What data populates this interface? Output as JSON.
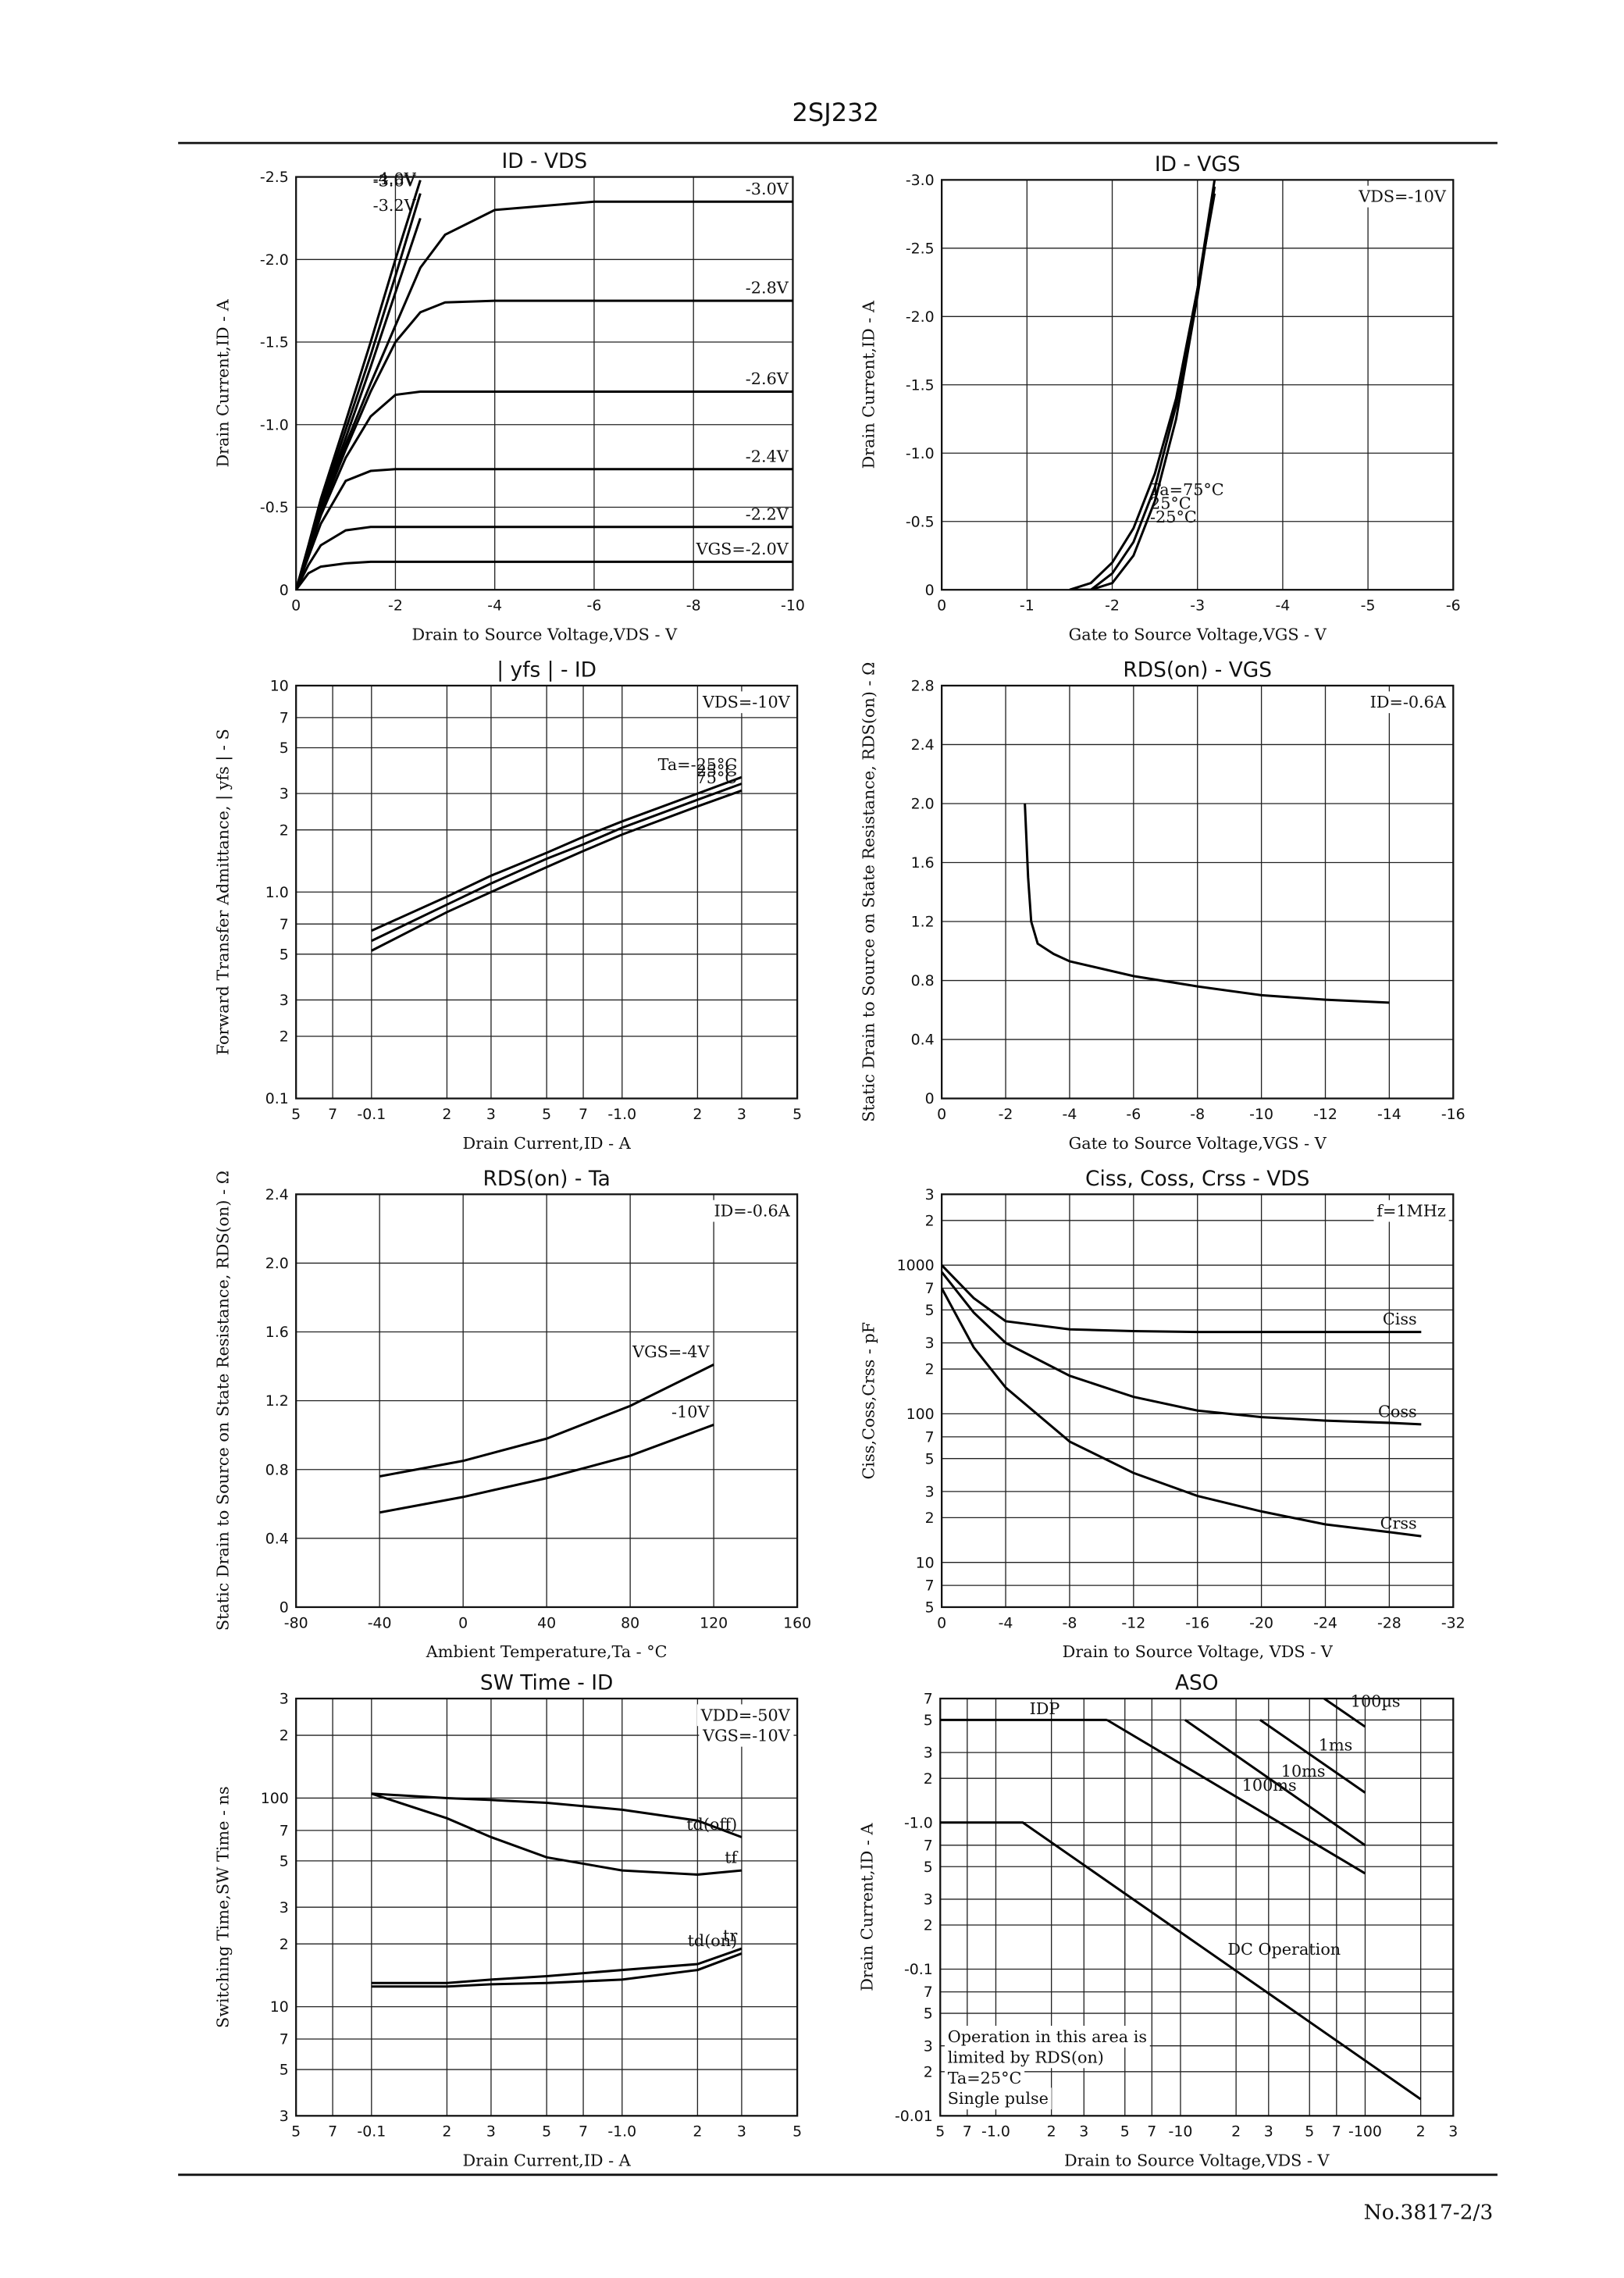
{
  "header": "2SJ232",
  "footer": "No.3817-2/3",
  "chart_data": [
    {
      "type": "line",
      "title": "ID - VDS",
      "xlabel": "Drain to Source Voltage,VDS - V",
      "ylabel": "Drain Current,ID - A",
      "color": "#000",
      "grid": true,
      "xlim": [
        0,
        -10
      ],
      "ylim": [
        0,
        -2.5
      ],
      "xticks": [
        0,
        -2,
        -4,
        -6,
        -8,
        -10
      ],
      "yticks": [
        0,
        -0.5,
        {
          "value": -1,
          "label": "-1.0"
        },
        -1.5,
        {
          "value": -2,
          "label": "-2.0"
        },
        -2.5
      ],
      "x": [
        0,
        -0.25,
        -0.5,
        -1,
        -1.5,
        -2,
        -2.5,
        -3,
        -4,
        -6,
        -8,
        -10
      ],
      "series": [
        {
          "name": "VGS=-2.0V",
          "values": [
            0,
            -0.1,
            -0.14,
            -0.16,
            -0.17,
            -0.17,
            -0.17,
            -0.17,
            -0.17,
            -0.17,
            -0.17,
            -0.17
          ]
        },
        {
          "name": "-2.2V",
          "values": [
            0,
            -0.15,
            -0.27,
            -0.36,
            -0.38,
            -0.38,
            -0.38,
            -0.38,
            -0.38,
            -0.38,
            -0.38,
            -0.38
          ]
        },
        {
          "name": "-2.4V",
          "values": [
            0,
            -0.2,
            -0.4,
            -0.66,
            -0.72,
            -0.73,
            -0.73,
            -0.73,
            -0.73,
            -0.73,
            -0.73,
            -0.73
          ]
        },
        {
          "name": "-2.6V",
          "values": [
            0,
            -0.22,
            -0.45,
            -0.8,
            -1.05,
            -1.18,
            -1.2,
            -1.2,
            -1.2,
            -1.2,
            -1.2,
            -1.2
          ]
        },
        {
          "name": "-2.8V",
          "values": [
            0,
            -0.23,
            -0.47,
            -0.85,
            -1.2,
            -1.5,
            -1.68,
            -1.74,
            -1.75,
            -1.75,
            -1.75,
            -1.75
          ]
        },
        {
          "name": "-3.0V",
          "values": [
            0,
            -0.24,
            -0.48,
            -0.88,
            -1.25,
            -1.6,
            -1.95,
            -2.15,
            -2.3,
            -2.35,
            -2.35,
            -2.35
          ]
        },
        {
          "name": "-3.2V",
          "values": [
            0,
            -0.25,
            -0.5,
            -0.92,
            -1.35,
            -1.8,
            -2.25,
            null,
            null,
            null,
            null,
            null
          ]
        },
        {
          "name": "-3.6V",
          "values": [
            0,
            -0.26,
            -0.52,
            -0.97,
            -1.42,
            -1.9,
            -2.4,
            null,
            null,
            null,
            null,
            null
          ]
        },
        {
          "name": "-4.0V",
          "values": [
            0,
            -0.27,
            -0.55,
            -1.02,
            -1.5,
            -2.0,
            -2.48,
            null,
            null,
            null,
            null,
            null
          ]
        }
      ]
    },
    {
      "type": "line",
      "title": "ID - VGS",
      "xlabel": "Gate to Source Voltage,VGS - V",
      "ylabel": "Drain Current,ID - A",
      "color": "#000",
      "grid": true,
      "annotations": [
        "VDS=-10V"
      ],
      "xlim": [
        0,
        -6
      ],
      "ylim": [
        0,
        -3
      ],
      "xticks": [
        0,
        -1,
        -2,
        -3,
        -4,
        -5,
        -6
      ],
      "yticks": [
        0,
        -0.5,
        {
          "value": -1,
          "label": "-1.0"
        },
        -1.5,
        {
          "value": -2,
          "label": "-2.0"
        },
        -2.5,
        {
          "value": -3,
          "label": "-3.0"
        }
      ],
      "x": [
        -1.5,
        -1.75,
        -2,
        -2.25,
        -2.5,
        -2.75,
        -3,
        -3.2
      ],
      "series": [
        {
          "name": "Ta=75°C",
          "values": [
            0,
            -0.05,
            -0.2,
            -0.45,
            -0.85,
            -1.4,
            -2.2,
            -2.9
          ]
        },
        {
          "name": "-25°C",
          "values": [
            0,
            0,
            -0.05,
            -0.25,
            -0.65,
            -1.25,
            -2.15,
            -2.95
          ]
        },
        {
          "name": "25°C",
          "values": [
            0,
            0,
            -0.12,
            -0.35,
            -0.75,
            -1.35,
            -2.2,
            -3.0
          ]
        }
      ]
    },
    {
      "type": "line",
      "title": "| yfs | - ID",
      "xlabel": "Drain Current,ID - A",
      "ylabel": "Forward Transfer Admittance, | yfs | - S",
      "color": "#000",
      "grid": true,
      "xscale": "log",
      "yscale": "log",
      "annotations": [
        "VDS=-10V"
      ],
      "xlim": [
        -0.05,
        -5
      ],
      "ylim": [
        0.1,
        10
      ],
      "xticks": [
        {
          "value": -0.05,
          "label": "5"
        },
        {
          "value": -0.07,
          "label": "7"
        },
        -0.1,
        {
          "value": -0.2,
          "label": "2"
        },
        {
          "value": -0.3,
          "label": "3"
        },
        {
          "value": -0.5,
          "label": "5"
        },
        {
          "value": -0.7,
          "label": "7"
        },
        {
          "value": -1,
          "label": "-1.0"
        },
        {
          "value": -2,
          "label": "2"
        },
        {
          "value": -3,
          "label": "3"
        },
        {
          "value": -5,
          "label": "5"
        }
      ],
      "yticks": [
        0.1,
        {
          "value": 0.2,
          "label": "2"
        },
        {
          "value": 0.3,
          "label": "3"
        },
        {
          "value": 0.5,
          "label": "5"
        },
        {
          "value": 0.7,
          "label": "7"
        },
        {
          "value": 1,
          "label": "1.0"
        },
        2,
        3,
        5,
        7,
        10
      ],
      "x": [
        -0.1,
        -0.2,
        -0.3,
        -0.5,
        -0.7,
        -1,
        -2,
        -3
      ],
      "series": [
        {
          "name": "Ta=-25°C",
          "values": [
            0.65,
            0.95,
            1.2,
            1.55,
            1.85,
            2.2,
            3.0,
            3.6
          ]
        },
        {
          "name": "25°C",
          "values": [
            0.58,
            0.87,
            1.1,
            1.45,
            1.7,
            2.05,
            2.8,
            3.35
          ]
        },
        {
          "name": "75°C",
          "values": [
            0.52,
            0.8,
            1.0,
            1.32,
            1.58,
            1.9,
            2.6,
            3.1
          ]
        }
      ]
    },
    {
      "type": "line",
      "title": "RDS(on) - VGS",
      "xlabel": "Gate to Source Voltage,VGS - V",
      "ylabel": "Static Drain to Source on State Resistance, RDS(on) - Ω",
      "color": "#000",
      "grid": true,
      "annotations": [
        "ID=-0.6A"
      ],
      "xlim": [
        0,
        -16
      ],
      "ylim": [
        0,
        2.8
      ],
      "xticks": [
        0,
        -2,
        -4,
        -6,
        -8,
        -10,
        -12,
        -14,
        -16
      ],
      "yticks": [
        0,
        0.4,
        0.8,
        1.2,
        1.6,
        {
          "value": 2,
          "label": "2.0"
        },
        2.4,
        2.8
      ],
      "x": [
        -2.6,
        -2.7,
        -2.8,
        -3,
        -3.5,
        -4,
        -6,
        -8,
        -10,
        -12,
        -14
      ],
      "series": [
        {
          "values": [
            2.0,
            1.5,
            1.2,
            1.05,
            0.98,
            0.93,
            0.83,
            0.76,
            0.7,
            0.67,
            0.65
          ]
        }
      ]
    },
    {
      "type": "line",
      "title": "RDS(on) - Ta",
      "xlabel": "Ambient Temperature,Ta - °C",
      "ylabel": "Static Drain to Source on State Resistance, RDS(on) - Ω",
      "color": "#000",
      "grid": true,
      "annotations": [
        "ID=-0.6A"
      ],
      "xlim": [
        -80,
        160
      ],
      "ylim": [
        0,
        2.4
      ],
      "xticks": [
        -80,
        -40,
        0,
        40,
        80,
        120,
        160
      ],
      "yticks": [
        0,
        0.4,
        0.8,
        1.2,
        1.6,
        {
          "value": 2,
          "label": "2.0"
        },
        2.4
      ],
      "x": [
        -40,
        0,
        40,
        80,
        120
      ],
      "series": [
        {
          "name": "VGS=-4V",
          "values": [
            0.76,
            0.85,
            0.98,
            1.17,
            1.41
          ]
        },
        {
          "name": "-10V",
          "values": [
            0.55,
            0.64,
            0.75,
            0.88,
            1.06
          ]
        }
      ]
    },
    {
      "type": "line",
      "title": "Ciss, Coss, Crss - VDS",
      "xlabel": "Drain to Source Voltage, VDS - V",
      "ylabel": "Ciss,Coss,Crss - pF",
      "color": "#000",
      "grid": true,
      "yscale": "log",
      "annotations": [
        "f=1MHz"
      ],
      "xlim": [
        0,
        -32
      ],
      "ylim": [
        5,
        3000
      ],
      "xticks": [
        0,
        -4,
        -8,
        -12,
        -16,
        -20,
        -24,
        -28,
        -32
      ],
      "yticks": [
        5,
        7,
        10,
        {
          "value": 20,
          "label": "2"
        },
        {
          "value": 30,
          "label": "3"
        },
        {
          "value": 50,
          "label": "5"
        },
        {
          "value": 70,
          "label": "7"
        },
        100,
        {
          "value": 200,
          "label": "2"
        },
        {
          "value": 300,
          "label": "3"
        },
        {
          "value": 500,
          "label": "5"
        },
        {
          "value": 700,
          "label": "7"
        },
        1000,
        {
          "value": 2000,
          "label": "2"
        },
        {
          "value": 3000,
          "label": "3"
        }
      ],
      "x": [
        0,
        -2,
        -4,
        -8,
        -12,
        -16,
        -20,
        -24,
        -28,
        -30
      ],
      "series": [
        {
          "name": "Ciss",
          "values": [
            1000,
            600,
            420,
            370,
            360,
            355,
            355,
            355,
            355,
            355
          ]
        },
        {
          "name": "Coss",
          "values": [
            900,
            480,
            300,
            180,
            130,
            105,
            95,
            90,
            87,
            85
          ]
        },
        {
          "name": "Crss",
          "values": [
            700,
            280,
            150,
            65,
            40,
            28,
            22,
            18,
            16,
            15
          ]
        }
      ]
    },
    {
      "type": "line",
      "title": "SW Time - ID",
      "xlabel": "Drain Current,ID - A",
      "ylabel": "Switching Time,SW Time - ns",
      "color": "#000",
      "grid": true,
      "xscale": "log",
      "yscale": "log",
      "annotations": [
        "VDD=-50V",
        "VGS=-10V"
      ],
      "xlim": [
        -0.05,
        -5
      ],
      "ylim": [
        3,
        300
      ],
      "xticks": [
        {
          "value": -0.05,
          "label": "5"
        },
        {
          "value": -0.07,
          "label": "7"
        },
        -0.1,
        {
          "value": -0.2,
          "label": "2"
        },
        {
          "value": -0.3,
          "label": "3"
        },
        {
          "value": -0.5,
          "label": "5"
        },
        {
          "value": -0.7,
          "label": "7"
        },
        {
          "value": -1,
          "label": "-1.0"
        },
        {
          "value": -2,
          "label": "2"
        },
        {
          "value": -3,
          "label": "3"
        },
        {
          "value": -5,
          "label": "5"
        }
      ],
      "yticks": [
        3,
        5,
        7,
        10,
        {
          "value": 20,
          "label": "2"
        },
        {
          "value": 30,
          "label": "3"
        },
        {
          "value": 50,
          "label": "5"
        },
        {
          "value": 70,
          "label": "7"
        },
        100,
        {
          "value": 200,
          "label": "2"
        },
        {
          "value": 300,
          "label": "3"
        }
      ],
      "x": [
        -0.1,
        -0.2,
        -0.3,
        -0.5,
        -1,
        -2,
        -3
      ],
      "series": [
        {
          "name": "td(off)",
          "values": [
            105,
            100,
            98,
            95,
            88,
            78,
            65
          ]
        },
        {
          "name": "tf",
          "values": [
            105,
            80,
            65,
            52,
            45,
            43,
            45
          ]
        },
        {
          "name": "tr",
          "values": [
            13,
            13,
            13.5,
            14,
            15,
            16,
            19
          ]
        },
        {
          "name": "td(on)",
          "values": [
            12.5,
            12.5,
            12.8,
            13,
            13.5,
            15,
            18
          ]
        }
      ]
    },
    {
      "type": "line",
      "title": "ASO",
      "xlabel": "Drain to Source Voltage,VDS - V",
      "ylabel": "Drain Current,ID - A",
      "color": "#000",
      "grid": true,
      "xscale": "log",
      "yscale": "log",
      "annotations": [
        "Operation in this area is",
        "limited by RDS(on)",
        "Ta=25°C",
        "Single pulse"
      ],
      "xlim": [
        -0.5,
        -300
      ],
      "ylim": [
        -0.01,
        -7
      ],
      "xticks": [
        {
          "value": -0.5,
          "label": "5"
        },
        {
          "value": -0.7,
          "label": "7"
        },
        {
          "value": -1,
          "label": "-1.0"
        },
        {
          "value": -2,
          "label": "2"
        },
        {
          "value": -3,
          "label": "3"
        },
        {
          "value": -5,
          "label": "5"
        },
        {
          "value": -7,
          "label": "7"
        },
        -10,
        {
          "value": -20,
          "label": "2"
        },
        {
          "value": -30,
          "label": "3"
        },
        {
          "value": -50,
          "label": "5"
        },
        {
          "value": -70,
          "label": "7"
        },
        -100,
        {
          "value": -200,
          "label": "2"
        },
        {
          "value": -300,
          "label": "3"
        }
      ],
      "yticks": [
        -0.01,
        {
          "value": -0.02,
          "label": "2"
        },
        {
          "value": -0.03,
          "label": "3"
        },
        {
          "value": -0.05,
          "label": "5"
        },
        {
          "value": -0.07,
          "label": "7"
        },
        -0.1,
        {
          "value": -0.2,
          "label": "2"
        },
        {
          "value": -0.3,
          "label": "3"
        },
        {
          "value": -0.5,
          "label": "5"
        },
        {
          "value": -0.7,
          "label": "7"
        },
        {
          "value": -1,
          "label": "-1.0"
        },
        {
          "value": -2,
          "label": "2"
        },
        {
          "value": -3,
          "label": "3"
        },
        {
          "value": -5,
          "label": "5"
        },
        {
          "value": -7,
          "label": "7"
        }
      ],
      "series": [
        {
          "name": "IDP",
          "x": [
            -0.5,
            -4
          ],
          "values": [
            -5,
            -5
          ]
        },
        {
          "name": "100µs",
          "x": [
            -60,
            -100
          ],
          "values": [
            -7,
            -4.5
          ]
        },
        {
          "name": "1ms",
          "x": [
            -27,
            -100
          ],
          "values": [
            -5,
            -1.6
          ]
        },
        {
          "name": "10ms",
          "x": [
            -10.6,
            -100
          ],
          "values": [
            -5,
            -0.7
          ]
        },
        {
          "name": "100ms",
          "x": [
            -4,
            -100
          ],
          "values": [
            -5,
            -0.45
          ]
        },
        {
          "name": "DC Operation",
          "x": [
            -0.5,
            -1.4,
            -200
          ],
          "values": [
            -1,
            -1,
            -0.013
          ]
        }
      ]
    }
  ]
}
